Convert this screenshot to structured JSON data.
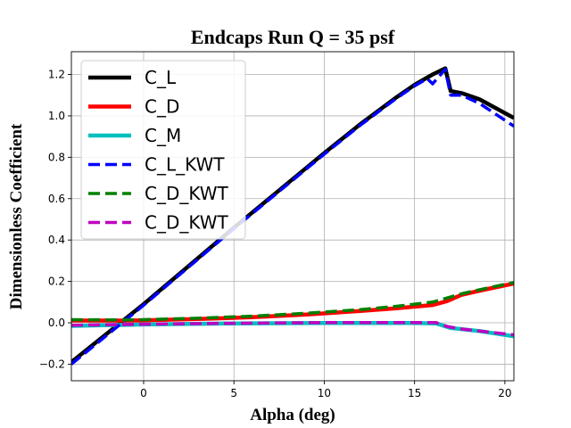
{
  "chart_data": {
    "type": "line",
    "title": "Endcaps Run Q = 35 psf",
    "xlabel": "Alpha (deg)",
    "ylabel": "Dimensionless Coefficient",
    "xlim": [
      -4,
      20.5
    ],
    "ylim": [
      -0.28,
      1.31
    ],
    "xticks": [
      0,
      5,
      10,
      15,
      20
    ],
    "yticks": [
      -0.2,
      0.0,
      0.2,
      0.4,
      0.6,
      0.8,
      1.0,
      1.2
    ],
    "xtick_labels": [
      "0",
      "5",
      "10",
      "15",
      "20"
    ],
    "ytick_labels": [
      "−0.2",
      "0.0",
      "0.2",
      "0.4",
      "0.6",
      "0.8",
      "1.0",
      "1.2"
    ],
    "grid": true,
    "legend_position": "top-left",
    "series": [
      {
        "name": "C_L",
        "color": "#000000",
        "style": "solid",
        "width": "thick",
        "x": [
          -4,
          0,
          5,
          10,
          12,
          14,
          15,
          16,
          16.7,
          17,
          17.6,
          18.6,
          20.5
        ],
        "y": [
          -0.19,
          0.09,
          0.46,
          0.82,
          0.96,
          1.09,
          1.15,
          1.2,
          1.23,
          1.12,
          1.11,
          1.08,
          0.99
        ]
      },
      {
        "name": "C_D",
        "color": "#ff0000",
        "style": "solid",
        "width": "thick",
        "x": [
          -4,
          -1,
          0,
          3,
          6,
          9,
          12,
          14,
          15,
          16,
          16.8,
          17.6,
          18.6,
          20.5
        ],
        "y": [
          0.011,
          0.011,
          0.012,
          0.018,
          0.027,
          0.04,
          0.057,
          0.07,
          0.078,
          0.086,
          0.105,
          0.135,
          0.155,
          0.19
        ]
      },
      {
        "name": "C_M",
        "color": "#00bfbf",
        "style": "solid",
        "width": "thick",
        "x": [
          -4,
          0,
          5,
          10,
          15,
          16.2,
          17,
          18.6,
          20.5
        ],
        "y": [
          -0.015,
          -0.008,
          -0.003,
          -0.001,
          -0.001,
          -0.003,
          -0.025,
          -0.04,
          -0.065
        ]
      },
      {
        "name": "C_L_KWT",
        "color": "#0000ff",
        "style": "dashed",
        "width": "medium",
        "x": [
          -4,
          0,
          5,
          10,
          12,
          14,
          15,
          15.7,
          16,
          16.7,
          17,
          17.6,
          18.6,
          20.5
        ],
        "y": [
          -0.2,
          0.085,
          0.455,
          0.815,
          0.955,
          1.085,
          1.145,
          1.18,
          1.155,
          1.225,
          1.1,
          1.1,
          1.06,
          0.95
        ]
      },
      {
        "name": "C_D_KWT",
        "color": "#008000",
        "style": "dashed",
        "width": "medium",
        "x": [
          -4,
          -1,
          0,
          3,
          6,
          9,
          12,
          14,
          15,
          16,
          16.8,
          17.6,
          18.6,
          20.5
        ],
        "y": [
          0.015,
          0.014,
          0.015,
          0.022,
          0.032,
          0.046,
          0.064,
          0.08,
          0.09,
          0.1,
          0.12,
          0.14,
          0.16,
          0.195
        ]
      },
      {
        "name": "C_D_KWT",
        "color": "#bf00bf",
        "style": "dashed",
        "width": "medium",
        "x": [
          -4,
          0,
          5,
          10,
          15,
          16.2,
          16.8,
          17.6,
          18.6,
          20.5
        ],
        "y": [
          -0.012,
          -0.007,
          -0.002,
          0.001,
          0.001,
          0.001,
          -0.018,
          -0.03,
          -0.04,
          -0.058
        ]
      }
    ]
  }
}
